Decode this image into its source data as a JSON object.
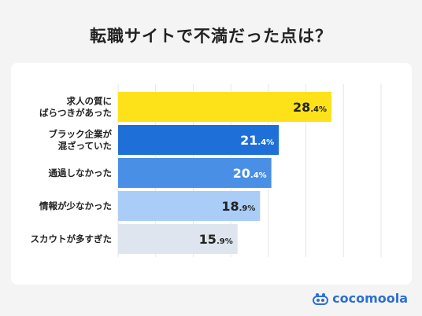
{
  "title": "転職サイトで不満だった点は？",
  "brand": {
    "name": "cocomoola"
  },
  "colors": {
    "bars": [
      "#fde21a",
      "#1f6fd8",
      "#4a8fe6",
      "#a9cdf6",
      "#dfe5ee"
    ],
    "value_text": [
      "#222222",
      "#ffffff",
      "#ffffff",
      "#222222",
      "#222222"
    ],
    "grid": "#e6e6e6",
    "brand": "#2a6fd6"
  },
  "chart_data": {
    "type": "bar",
    "orientation": "horizontal",
    "categories": [
      [
        "求人の質に",
        "ばらつきがあった"
      ],
      [
        "ブラック企業が",
        "混ざっていた"
      ],
      [
        "通過しなかった"
      ],
      [
        "情報が少なかった"
      ],
      [
        "スカウトが多すぎた"
      ]
    ],
    "values": [
      28.4,
      21.4,
      20.4,
      18.9,
      15.9
    ],
    "value_labels": [
      {
        "big": "28",
        "small": ".4%"
      },
      {
        "big": "21",
        "small": ".4%"
      },
      {
        "big": "20",
        "small": ".4%"
      },
      {
        "big": "18",
        "small": ".9%"
      },
      {
        "big": "15",
        "small": ".9%"
      }
    ],
    "xlim": [
      0,
      35
    ],
    "grid": true
  }
}
